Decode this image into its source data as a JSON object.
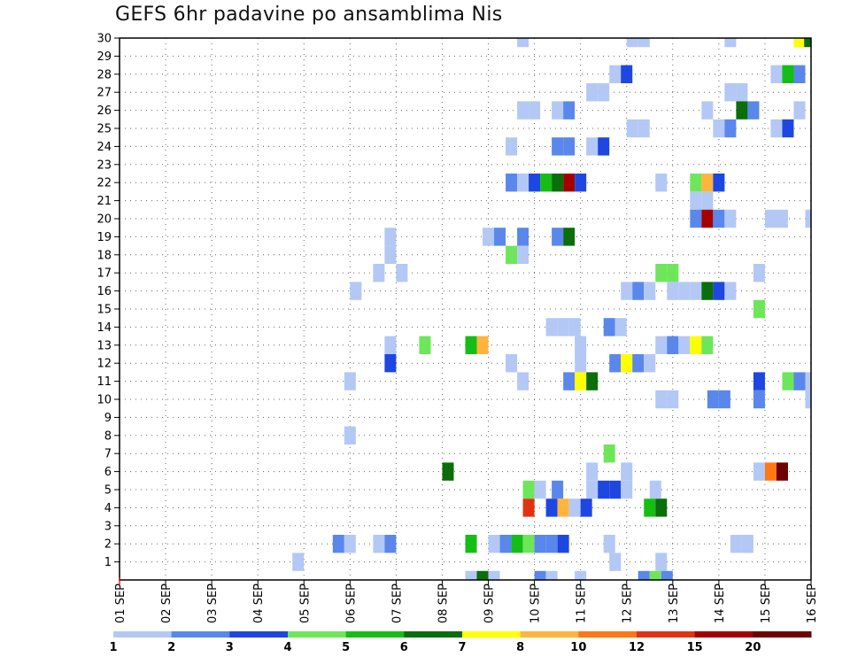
{
  "chart_data": {
    "type": "heatmap",
    "title": "GEFS 6hr padavine po ansamblima Nis",
    "xlabel": "",
    "ylabel": "",
    "x_unit": "6h step",
    "x_range": [
      0,
      60
    ],
    "x_ticks": [
      {
        "t": 0,
        "label": "01 SEP"
      },
      {
        "t": 4,
        "label": "02 SEP"
      },
      {
        "t": 8,
        "label": "03 SEP"
      },
      {
        "t": 12,
        "label": "04 SEP"
      },
      {
        "t": 16,
        "label": "05 SEP"
      },
      {
        "t": 20,
        "label": "06 SEP"
      },
      {
        "t": 24,
        "label": "07 SEP"
      },
      {
        "t": 28,
        "label": "08 SEP"
      },
      {
        "t": 32,
        "label": "09 SEP"
      },
      {
        "t": 36,
        "label": "10 SEP"
      },
      {
        "t": 40,
        "label": "11 SEP"
      },
      {
        "t": 44,
        "label": "12 SEP"
      },
      {
        "t": 48,
        "label": "13 SEP"
      },
      {
        "t": 52,
        "label": "14 SEP"
      },
      {
        "t": 56,
        "label": "15 SEP"
      },
      {
        "t": 60,
        "label": "16 SEP"
      }
    ],
    "y_range": [
      0,
      30
    ],
    "y_ticks": [
      1,
      2,
      3,
      4,
      5,
      6,
      7,
      8,
      9,
      10,
      11,
      12,
      13,
      14,
      15,
      16,
      17,
      18,
      19,
      20,
      21,
      22,
      23,
      24,
      25,
      26,
      27,
      28,
      29,
      30
    ],
    "grid": true,
    "color_scale": {
      "colors": [
        "#b4c8f5",
        "#5a87eb",
        "#1e46e1",
        "#6ee65a",
        "#14be14",
        "#0a6e0a",
        "#ffff00",
        "#ffb43c",
        "#ff7814",
        "#e13214",
        "#a50000",
        "#6e0000"
      ],
      "labels": [
        "1",
        "2",
        "3",
        "4",
        "5",
        "6",
        "7",
        "8",
        "10",
        "12",
        "15",
        "20"
      ]
    },
    "cells": [
      {
        "y": 30,
        "t": 35,
        "c": 0
      },
      {
        "y": 30,
        "t": 44.5,
        "c": 0
      },
      {
        "y": 30,
        "t": 45.5,
        "c": 0
      },
      {
        "y": 30,
        "t": 53,
        "c": 0
      },
      {
        "y": 30,
        "t": 59,
        "c": 6
      },
      {
        "y": 30,
        "t": 59.9,
        "c": 5
      },
      {
        "y": 28,
        "t": 43,
        "c": 0
      },
      {
        "y": 28,
        "t": 44,
        "c": 2
      },
      {
        "y": 28,
        "t": 57,
        "c": 0
      },
      {
        "y": 28,
        "t": 58,
        "c": 4
      },
      {
        "y": 28,
        "t": 59,
        "c": 1
      },
      {
        "y": 27,
        "t": 41,
        "c": 0
      },
      {
        "y": 27,
        "t": 42,
        "c": 0
      },
      {
        "y": 27,
        "t": 53,
        "c": 0
      },
      {
        "y": 27,
        "t": 54,
        "c": 0
      },
      {
        "y": 26,
        "t": 35,
        "c": 0
      },
      {
        "y": 26,
        "t": 36,
        "c": 0
      },
      {
        "y": 26,
        "t": 38,
        "c": 0
      },
      {
        "y": 26,
        "t": 39,
        "c": 1
      },
      {
        "y": 26,
        "t": 51,
        "c": 0
      },
      {
        "y": 26,
        "t": 54,
        "c": 5
      },
      {
        "y": 26,
        "t": 55,
        "c": 1
      },
      {
        "y": 26,
        "t": 59,
        "c": 0
      },
      {
        "y": 25,
        "t": 44.5,
        "c": 0
      },
      {
        "y": 25,
        "t": 45.5,
        "c": 0
      },
      {
        "y": 25,
        "t": 52,
        "c": 0
      },
      {
        "y": 25,
        "t": 53,
        "c": 1
      },
      {
        "y": 25,
        "t": 57,
        "c": 0
      },
      {
        "y": 25,
        "t": 58,
        "c": 2
      },
      {
        "y": 24,
        "t": 34,
        "c": 0
      },
      {
        "y": 24,
        "t": 38,
        "c": 1
      },
      {
        "y": 24,
        "t": 39,
        "c": 1
      },
      {
        "y": 24,
        "t": 41,
        "c": 0
      },
      {
        "y": 24,
        "t": 42,
        "c": 2
      },
      {
        "y": 22,
        "t": 34,
        "c": 1
      },
      {
        "y": 22,
        "t": 35,
        "c": 0
      },
      {
        "y": 22,
        "t": 36,
        "c": 2
      },
      {
        "y": 22,
        "t": 37,
        "c": 4
      },
      {
        "y": 22,
        "t": 38,
        "c": 5
      },
      {
        "y": 22,
        "t": 39,
        "c": 10
      },
      {
        "y": 22,
        "t": 40,
        "c": 2
      },
      {
        "y": 22,
        "t": 47,
        "c": 0
      },
      {
        "y": 22,
        "t": 50,
        "c": 3
      },
      {
        "y": 22,
        "t": 51,
        "c": 7
      },
      {
        "y": 22,
        "t": 52,
        "c": 2
      },
      {
        "y": 21,
        "t": 50,
        "c": 0
      },
      {
        "y": 21,
        "t": 51,
        "c": 0
      },
      {
        "y": 20,
        "t": 50,
        "c": 1
      },
      {
        "y": 20,
        "t": 51,
        "c": 10
      },
      {
        "y": 20,
        "t": 52,
        "c": 1
      },
      {
        "y": 20,
        "t": 53,
        "c": 0
      },
      {
        "y": 20,
        "t": 56.5,
        "c": 0
      },
      {
        "y": 20,
        "t": 57.5,
        "c": 0
      },
      {
        "y": 20,
        "t": 60,
        "c": 0
      },
      {
        "y": 19,
        "t": 23.5,
        "c": 0
      },
      {
        "y": 19,
        "t": 32,
        "c": 0
      },
      {
        "y": 19,
        "t": 33,
        "c": 1
      },
      {
        "y": 19,
        "t": 35,
        "c": 1
      },
      {
        "y": 19,
        "t": 38,
        "c": 1
      },
      {
        "y": 19,
        "t": 39,
        "c": 5
      },
      {
        "y": 18,
        "t": 23.5,
        "c": 0
      },
      {
        "y": 18,
        "t": 34,
        "c": 3
      },
      {
        "y": 18,
        "t": 35,
        "c": 0
      },
      {
        "y": 17,
        "t": 22.5,
        "c": 0
      },
      {
        "y": 17,
        "t": 24.5,
        "c": 0
      },
      {
        "y": 17,
        "t": 47,
        "c": 3
      },
      {
        "y": 17,
        "t": 48,
        "c": 3
      },
      {
        "y": 17,
        "t": 55.5,
        "c": 0
      },
      {
        "y": 16,
        "t": 20.5,
        "c": 0
      },
      {
        "y": 16,
        "t": 44,
        "c": 0
      },
      {
        "y": 16,
        "t": 45,
        "c": 1
      },
      {
        "y": 16,
        "t": 46,
        "c": 0
      },
      {
        "y": 16,
        "t": 48,
        "c": 0
      },
      {
        "y": 16,
        "t": 49,
        "c": 0
      },
      {
        "y": 16,
        "t": 50,
        "c": 0
      },
      {
        "y": 16,
        "t": 51,
        "c": 5
      },
      {
        "y": 16,
        "t": 52,
        "c": 2
      },
      {
        "y": 16,
        "t": 53,
        "c": 0
      },
      {
        "y": 15,
        "t": 55.5,
        "c": 3
      },
      {
        "y": 14,
        "t": 37.5,
        "c": 0
      },
      {
        "y": 14,
        "t": 38.5,
        "c": 0
      },
      {
        "y": 14,
        "t": 39.5,
        "c": 0
      },
      {
        "y": 14,
        "t": 42.5,
        "c": 1
      },
      {
        "y": 14,
        "t": 43.5,
        "c": 0
      },
      {
        "y": 13,
        "t": 23.5,
        "c": 0
      },
      {
        "y": 13,
        "t": 26.5,
        "c": 3
      },
      {
        "y": 13,
        "t": 30.5,
        "c": 4
      },
      {
        "y": 13,
        "t": 31.5,
        "c": 7
      },
      {
        "y": 13,
        "t": 40,
        "c": 0
      },
      {
        "y": 13,
        "t": 47,
        "c": 0
      },
      {
        "y": 13,
        "t": 48,
        "c": 1
      },
      {
        "y": 13,
        "t": 49,
        "c": 0
      },
      {
        "y": 13,
        "t": 50,
        "c": 6
      },
      {
        "y": 13,
        "t": 51,
        "c": 3
      },
      {
        "y": 12,
        "t": 23.5,
        "c": 2
      },
      {
        "y": 12,
        "t": 34,
        "c": 0
      },
      {
        "y": 12,
        "t": 40,
        "c": 0
      },
      {
        "y": 12,
        "t": 43,
        "c": 1
      },
      {
        "y": 12,
        "t": 44,
        "c": 6
      },
      {
        "y": 12,
        "t": 45,
        "c": 1
      },
      {
        "y": 12,
        "t": 46,
        "c": 0
      },
      {
        "y": 11,
        "t": 20,
        "c": 0
      },
      {
        "y": 11,
        "t": 35,
        "c": 0
      },
      {
        "y": 11,
        "t": 39,
        "c": 1
      },
      {
        "y": 11,
        "t": 40,
        "c": 6
      },
      {
        "y": 11,
        "t": 41,
        "c": 5
      },
      {
        "y": 11,
        "t": 55.5,
        "c": 2
      },
      {
        "y": 11,
        "t": 58,
        "c": 3
      },
      {
        "y": 11,
        "t": 59,
        "c": 1
      },
      {
        "y": 11,
        "t": 60,
        "c": 0
      },
      {
        "y": 10,
        "t": 47,
        "c": 0
      },
      {
        "y": 10,
        "t": 48,
        "c": 0
      },
      {
        "y": 10,
        "t": 51.5,
        "c": 1
      },
      {
        "y": 10,
        "t": 52.5,
        "c": 1
      },
      {
        "y": 10,
        "t": 55.5,
        "c": 1
      },
      {
        "y": 10,
        "t": 60,
        "c": 0
      },
      {
        "y": 8,
        "t": 20,
        "c": 0
      },
      {
        "y": 7,
        "t": 42.5,
        "c": 3
      },
      {
        "y": 6,
        "t": 28.5,
        "c": 5
      },
      {
        "y": 6,
        "t": 41,
        "c": 0
      },
      {
        "y": 6,
        "t": 44,
        "c": 0
      },
      {
        "y": 6,
        "t": 55.5,
        "c": 0
      },
      {
        "y": 6,
        "t": 56.5,
        "c": 8
      },
      {
        "y": 6,
        "t": 57.5,
        "c": 11
      },
      {
        "y": 5,
        "t": 35.5,
        "c": 3
      },
      {
        "y": 5,
        "t": 36.5,
        "c": 0
      },
      {
        "y": 5,
        "t": 38,
        "c": 1
      },
      {
        "y": 5,
        "t": 41,
        "c": 0
      },
      {
        "y": 5,
        "t": 42,
        "c": 2
      },
      {
        "y": 5,
        "t": 43,
        "c": 2
      },
      {
        "y": 5,
        "t": 44,
        "c": 0
      },
      {
        "y": 5,
        "t": 46.5,
        "c": 0
      },
      {
        "y": 4,
        "t": 35.5,
        "c": 9
      },
      {
        "y": 4,
        "t": 37.5,
        "c": 2
      },
      {
        "y": 4,
        "t": 38.5,
        "c": 7
      },
      {
        "y": 4,
        "t": 39.5,
        "c": 0
      },
      {
        "y": 4,
        "t": 40.5,
        "c": 2
      },
      {
        "y": 4,
        "t": 46,
        "c": 4
      },
      {
        "y": 4,
        "t": 47,
        "c": 5
      },
      {
        "y": 2,
        "t": 19,
        "c": 1
      },
      {
        "y": 2,
        "t": 20,
        "c": 0
      },
      {
        "y": 2,
        "t": 22.5,
        "c": 0
      },
      {
        "y": 2,
        "t": 23.5,
        "c": 1
      },
      {
        "y": 2,
        "t": 30.5,
        "c": 4
      },
      {
        "y": 2,
        "t": 32.5,
        "c": 0
      },
      {
        "y": 2,
        "t": 33.5,
        "c": 1
      },
      {
        "y": 2,
        "t": 34.5,
        "c": 4
      },
      {
        "y": 2,
        "t": 35.5,
        "c": 3
      },
      {
        "y": 2,
        "t": 36.5,
        "c": 1
      },
      {
        "y": 2,
        "t": 37.5,
        "c": 1
      },
      {
        "y": 2,
        "t": 38.5,
        "c": 2
      },
      {
        "y": 2,
        "t": 42.5,
        "c": 0
      },
      {
        "y": 2,
        "t": 53.5,
        "c": 0
      },
      {
        "y": 2,
        "t": 54.5,
        "c": 0
      },
      {
        "y": 1,
        "t": 15.5,
        "c": 0
      },
      {
        "y": 1,
        "t": 43,
        "c": 0
      },
      {
        "y": 1,
        "t": 47,
        "c": 0
      },
      {
        "y": 0,
        "t": 30.5,
        "c": 0
      },
      {
        "y": 0,
        "t": 31.5,
        "c": 5
      },
      {
        "y": 0,
        "t": 32.5,
        "c": 0
      },
      {
        "y": 0,
        "t": 36.5,
        "c": 1
      },
      {
        "y": 0,
        "t": 37.5,
        "c": 0
      },
      {
        "y": 0,
        "t": 40,
        "c": 0
      },
      {
        "y": 0,
        "t": 45.5,
        "c": 1
      },
      {
        "y": 0,
        "t": 46.5,
        "c": 3
      },
      {
        "y": 0,
        "t": 47.5,
        "c": 1
      }
    ]
  }
}
